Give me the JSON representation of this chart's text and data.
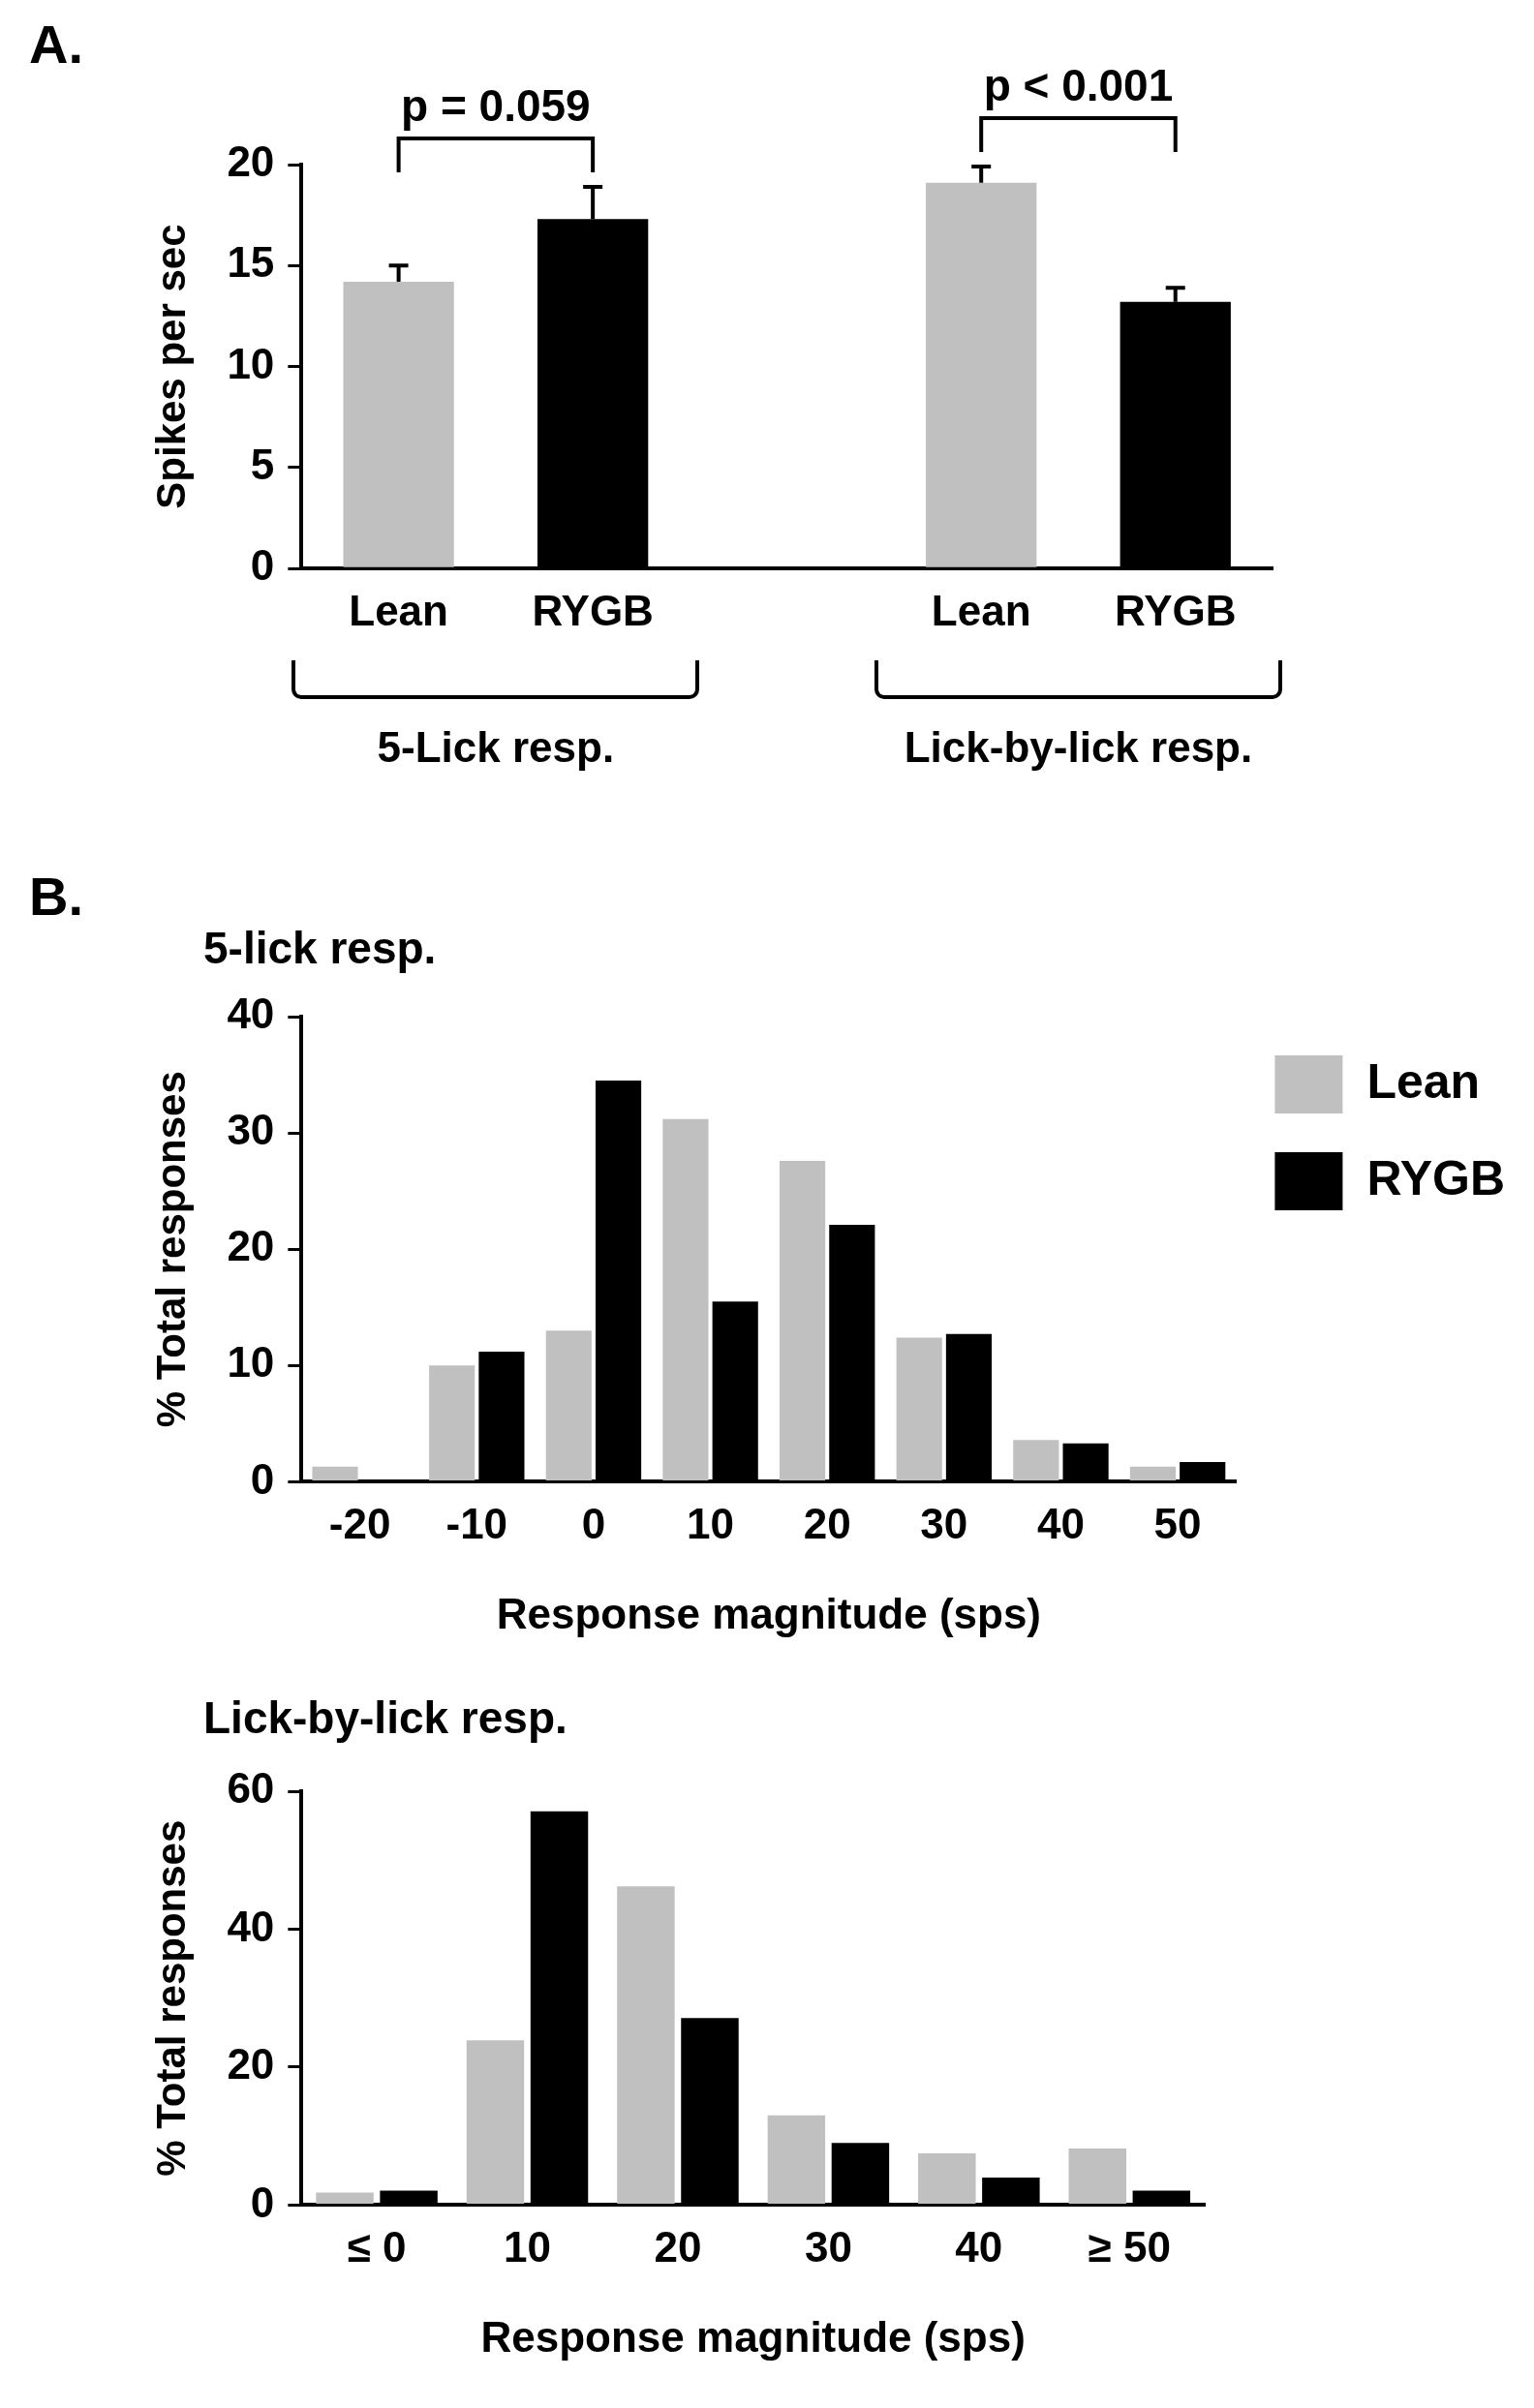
{
  "chart_data": [
    {
      "type": "bar",
      "ylabel": "Spikes per sec",
      "categories": [
        "Lean",
        "RYGB",
        null,
        "Lean",
        "RYGB"
      ],
      "values": [
        14.2,
        17.3,
        null,
        19.1,
        13.2
      ],
      "colors": [
        "#c0c0c0",
        "#000000",
        null,
        "#c0c0c0",
        "#000000"
      ],
      "errors": [
        [
          14.2,
          15.0
        ],
        [
          17.3,
          18.9
        ],
        null,
        [
          19.1,
          19.9
        ],
        [
          13.2,
          13.9
        ]
      ],
      "ylim": [
        0,
        20
      ],
      "yticks": [
        0,
        5,
        10,
        15,
        20
      ],
      "annotations": [
        "A.",
        "p = 0.059",
        "p < 0.001",
        "5-Lick resp.",
        "Lick-by-lick resp."
      ]
    },
    {
      "type": "bar",
      "title": "5-lick resp.",
      "xlabel": "Response magnitude (sps)",
      "ylabel": "% Total responses",
      "categories": [
        "-20",
        "-10",
        "0",
        "10",
        "20",
        "30",
        "40",
        "50"
      ],
      "series": [
        {
          "name": "Lean",
          "color": "#c0c0c0",
          "values": [
            1.3,
            10.0,
            13.0,
            31.2,
            27.6,
            12.4,
            3.6,
            1.3
          ]
        },
        {
          "name": "RYGB",
          "color": "#000000",
          "values": [
            0,
            11.2,
            34.5,
            15.5,
            22.1,
            12.7,
            3.3,
            1.7
          ]
        }
      ],
      "ylim": [
        0,
        40
      ],
      "yticks": [
        0,
        10,
        20,
        30,
        40
      ],
      "legend": "right",
      "annotations": [
        "B."
      ]
    },
    {
      "type": "bar",
      "title": "Lick-by-lick resp.",
      "xlabel": "Response magnitude (sps)",
      "ylabel": "% Total responses",
      "categories": [
        "≤ 0",
        "10",
        "20",
        "30",
        "40",
        "≥ 50"
      ],
      "series": [
        {
          "color": "#c0c0c0",
          "values": [
            1.8,
            23.9,
            46.2,
            13.0,
            7.5,
            8.2
          ]
        },
        {
          "color": "#000000",
          "values": [
            2.1,
            57.1,
            27.1,
            9.0,
            4.0,
            2.1
          ]
        }
      ],
      "ylim": [
        0,
        60
      ],
      "yticks": [
        0,
        20,
        40,
        60
      ]
    }
  ]
}
